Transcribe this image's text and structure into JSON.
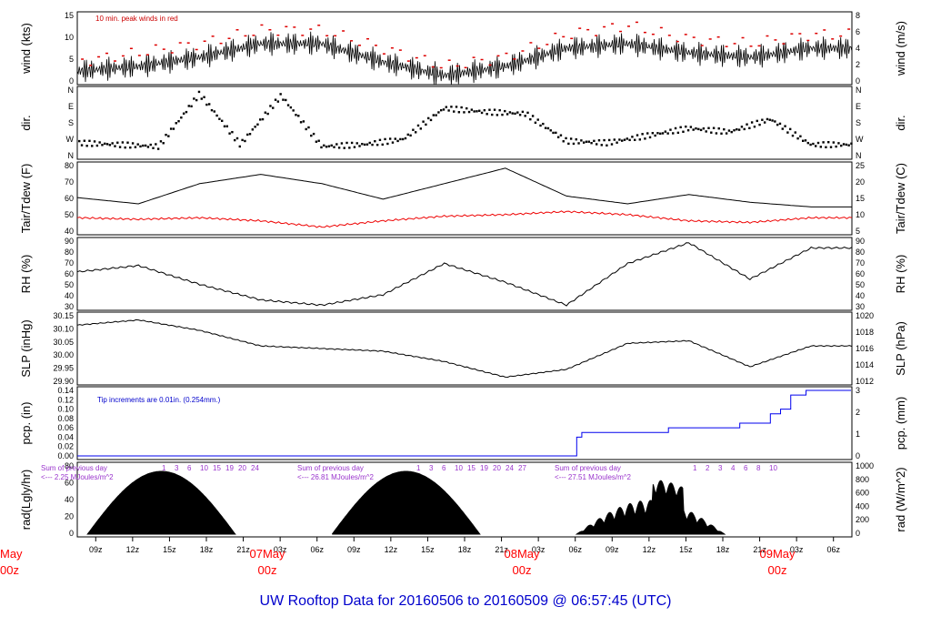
{
  "title": "UW Rooftop Data for 20160506  to  20160509 @ 06:57:45  (UTC)",
  "colors": {
    "frame": "#000000",
    "peak": "#dd0000",
    "dew": "#ee0000",
    "precip": "#0000ee",
    "note_wind": "#cc0000",
    "note_precip": "#0000cc",
    "note_rad": "#9933cc",
    "date_label": "#ff0000",
    "title": "#0000cc"
  },
  "chart_data": [
    {
      "type": "line",
      "name": "wind",
      "ylabel_left": "wind (kts)",
      "ylabel_right": "wind (m/s)",
      "ylim": [
        0,
        16
      ],
      "yticks_left": [
        "0",
        "5",
        "10",
        "15"
      ],
      "yticks_right": [
        "0",
        "2",
        "4",
        "6",
        "8"
      ],
      "annotation": "10 min. peak winds in red",
      "x": [
        0,
        6,
        12,
        18,
        24,
        30,
        36,
        42,
        48,
        54,
        60,
        66,
        72
      ],
      "sustained": [
        3,
        4,
        6,
        9,
        9,
        5,
        2,
        4,
        8,
        9,
        7,
        6,
        8
      ],
      "peak": [
        5,
        7,
        9,
        12,
        12,
        8,
        4,
        6,
        11,
        13,
        10,
        9,
        11
      ]
    },
    {
      "type": "scatter",
      "name": "direction",
      "ylabel_left": "dir.",
      "ylabel_right": "dir.",
      "yticks_left": [
        "N",
        "W",
        "S",
        "E",
        "N"
      ],
      "yticks_right": [
        "N",
        "W",
        "S",
        "E",
        "N"
      ],
      "x": [
        0,
        4,
        8,
        12,
        16,
        20,
        24,
        28,
        32,
        36,
        40,
        44,
        48,
        52,
        56,
        60,
        64,
        68,
        72
      ],
      "deg": [
        70,
        60,
        50,
        340,
        60,
        330,
        50,
        60,
        90,
        260,
        240,
        230,
        80,
        70,
        110,
        150,
        130,
        200,
        60
      ]
    },
    {
      "type": "line",
      "name": "temperature",
      "ylabel_left": "Tair/Tdew (F)",
      "ylabel_right": "Tair/Tdew (C)",
      "ylim": [
        35,
        82
      ],
      "yticks_left": [
        "40",
        "50",
        "60",
        "70",
        "80"
      ],
      "yticks_right": [
        "5",
        "10",
        "15",
        "20",
        "25"
      ],
      "x": [
        0,
        6,
        12,
        18,
        24,
        30,
        36,
        42,
        48,
        54,
        60,
        66,
        72
      ],
      "tair": [
        59,
        55,
        68,
        74,
        68,
        58,
        68,
        78,
        60,
        55,
        61,
        56,
        53
      ],
      "tdew": [
        46,
        45,
        46,
        44,
        40,
        44,
        47,
        48,
        50,
        48,
        44,
        43,
        46
      ]
    },
    {
      "type": "line",
      "name": "rh",
      "ylabel_left": "RH (%)",
      "ylabel_right": "RH (%)",
      "ylim": [
        25,
        95
      ],
      "yticks_left": [
        "30",
        "40",
        "50",
        "60",
        "70",
        "80",
        "90"
      ],
      "yticks_right": [
        "30",
        "40",
        "50",
        "60",
        "70",
        "80",
        "90"
      ],
      "x": [
        0,
        6,
        12,
        18,
        24,
        30,
        36,
        42,
        48,
        54,
        60,
        66,
        72
      ],
      "values": [
        62,
        68,
        50,
        35,
        30,
        40,
        70,
        52,
        30,
        70,
        90,
        55,
        85
      ]
    },
    {
      "type": "line",
      "name": "pressure",
      "ylabel_left": "SLP (inHg)",
      "ylabel_right": "SLP (hPa)",
      "ylim": [
        29.89,
        30.17
      ],
      "yticks_left": [
        "29.90",
        "29.95",
        "30.00",
        "30.05",
        "30.10",
        "30.15"
      ],
      "yticks_right": [
        "1012",
        "1014",
        "1016",
        "1018",
        "1020"
      ],
      "x": [
        0,
        6,
        12,
        18,
        24,
        30,
        36,
        42,
        48,
        54,
        60,
        66,
        72
      ],
      "values": [
        30.12,
        30.14,
        30.1,
        30.04,
        30.03,
        30.02,
        29.98,
        29.92,
        29.95,
        30.05,
        30.06,
        29.96,
        30.04
      ]
    },
    {
      "type": "line",
      "name": "precip",
      "ylabel_left": "pcp. (in)",
      "ylabel_right": "pcp. (mm)",
      "ylim": [
        0,
        0.14
      ],
      "yticks_left": [
        "0.00",
        "0.02",
        "0.04",
        "0.06",
        "0.08",
        "0.10",
        "0.12",
        "0.14"
      ],
      "yticks_right": [
        "0",
        "1",
        "2",
        "3"
      ],
      "annotation": "Tip increments are 0.01in. (0.254mm.)",
      "x": [
        0,
        48.5,
        49,
        49.5,
        58,
        65,
        68,
        69,
        70,
        71.5,
        72
      ],
      "values": [
        0,
        0,
        0.04,
        0.05,
        0.06,
        0.07,
        0.09,
        0.1,
        0.13,
        0.14,
        0.14
      ]
    },
    {
      "type": "area",
      "name": "radiation",
      "ylabel_left": "rad(Lgly/hr)",
      "ylabel_right": "rad (W/m^2)",
      "ylim": [
        0,
        1000
      ],
      "yticks_left": [
        "0",
        "20",
        "40",
        "60",
        "80"
      ],
      "yticks_right": [
        "0",
        "200",
        "400",
        "600",
        "800",
        "1000"
      ],
      "notes": [
        {
          "line1": "Sum of previous day",
          "line2": "<--- 2.25 MJoules/m^2"
        },
        {
          "line1": "Sum of previous day",
          "line2": "<--- 26.81 MJoules/m^2"
        },
        {
          "line1": "Sum of previous day",
          "line2": "<--- 27.51 MJoules/m^2"
        }
      ],
      "hour_markers": [
        [
          "1",
          "3",
          "6",
          "10",
          "15",
          "19",
          "20",
          "24"
        ],
        [
          "1",
          "3",
          "6",
          "10",
          "15",
          "19",
          "20",
          "24",
          "27"
        ],
        [
          "1",
          "2",
          "3",
          "4",
          "6",
          "8",
          "10"
        ]
      ],
      "days": [
        {
          "start": 1,
          "end": 15.5,
          "peak": 920
        },
        {
          "start": 25,
          "end": 39.5,
          "peak": 920
        },
        {
          "start": 49,
          "end": 63.5,
          "peak": 620
        }
      ]
    }
  ],
  "x_axis": {
    "hour_ticks": [
      "09z",
      "12z",
      "15z",
      "18z",
      "21z",
      "03z",
      "06z",
      "09z",
      "12z",
      "15z",
      "18z",
      "21z",
      "03z",
      "06z",
      "09z",
      "12z",
      "15z",
      "18z",
      "21z",
      "03z",
      "06z"
    ],
    "date_labels": [
      {
        "date": "07May",
        "hour": "00z"
      },
      {
        "date": "08May",
        "hour": "00z"
      },
      {
        "date": "09May",
        "hour": "00z"
      }
    ],
    "edge_label": {
      "date": "May",
      "hour": "00z"
    }
  }
}
